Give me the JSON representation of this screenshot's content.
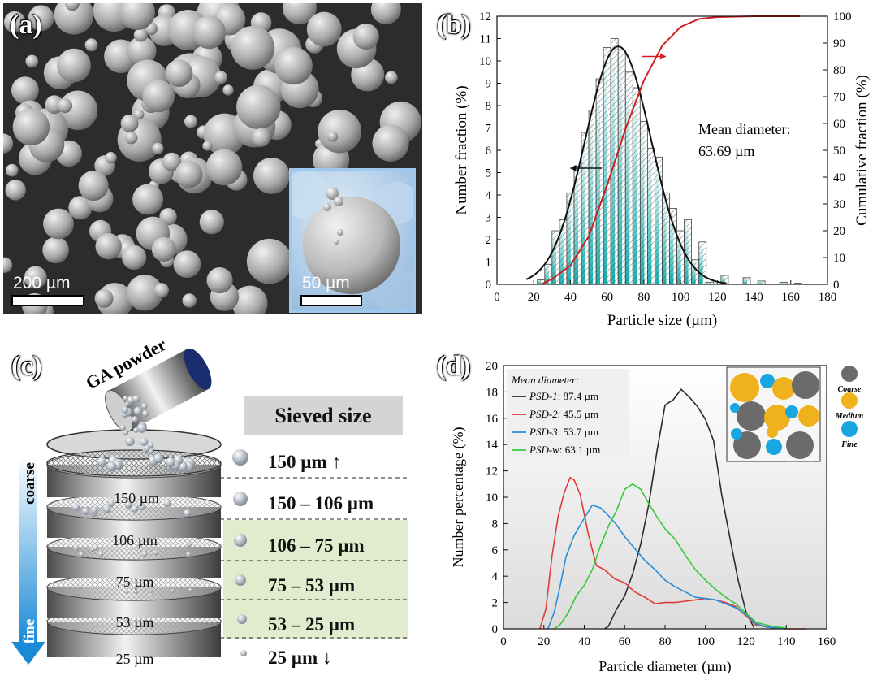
{
  "panels": {
    "a": {
      "letter": "(a)",
      "scale_main": "200 µm",
      "scale_inset": "50 µm"
    },
    "b": {
      "letter": "(b)"
    },
    "c": {
      "letter": "(c)"
    },
    "d": {
      "letter": "(d)"
    }
  },
  "chart_data": [
    {
      "type": "bar",
      "panel": "b",
      "xlabel": "Particle size (µm)",
      "ylabel": "Number fraction (%)",
      "y2label": "Cumulative fraction (%)",
      "xlim": [
        0,
        180
      ],
      "ylim": [
        0,
        12
      ],
      "y2lim": [
        0,
        100
      ],
      "xticks": [
        0,
        20,
        40,
        60,
        80,
        100,
        120,
        140,
        160,
        180
      ],
      "yticks": [
        0,
        1,
        2,
        3,
        4,
        5,
        6,
        7,
        8,
        9,
        10,
        11,
        12
      ],
      "y2ticks": [
        0,
        10,
        20,
        30,
        40,
        50,
        60,
        70,
        80,
        90,
        100
      ],
      "annotation": [
        "Mean diameter:",
        "63.69 µm"
      ],
      "bins": {
        "x": [
          24,
          28,
          32,
          36,
          40,
          44,
          48,
          52,
          56,
          60,
          64,
          68,
          72,
          76,
          80,
          84,
          88,
          92,
          96,
          100,
          104,
          108,
          112,
          116,
          124,
          136,
          144,
          156,
          164
        ],
        "values": [
          0.2,
          0.9,
          2.4,
          2.9,
          4.1,
          5.3,
          6.8,
          7.8,
          9.2,
          10.6,
          11.0,
          10.5,
          9.5,
          8.8,
          7.3,
          6.1,
          5.7,
          4.1,
          3.4,
          2.4,
          2.9,
          1.1,
          1.9,
          0.1,
          0.4,
          0.3,
          0.15,
          0.1,
          0.05
        ]
      },
      "fit_curve": {
        "mean": 66,
        "sd": 18,
        "peak": 10.65
      },
      "cumulative": {
        "x": [
          24,
          30,
          40,
          50,
          60,
          70,
          80,
          90,
          100,
          110,
          120,
          140,
          165
        ],
        "y": [
          0,
          2,
          7,
          18,
          37,
          58,
          76,
          89,
          96,
          99,
          99.7,
          100,
          100
        ]
      }
    },
    {
      "type": "line",
      "panel": "d",
      "xlabel": "Particle diameter (µm)",
      "ylabel": "Number percentage (%)",
      "xlim": [
        0,
        160
      ],
      "ylim": [
        0,
        20
      ],
      "xticks": [
        0,
        20,
        40,
        60,
        80,
        100,
        120,
        140,
        160
      ],
      "yticks": [
        0,
        2,
        4,
        6,
        8,
        10,
        12,
        14,
        16,
        18,
        20
      ],
      "legend_title": "Mean diameter:",
      "series": [
        {
          "name": "PSD-1",
          "label_value": ": 87.4 µm",
          "color": "#2b2b2b",
          "x": [
            50,
            52,
            56,
            60,
            64,
            68,
            72,
            76,
            80,
            84,
            88,
            92,
            96,
            100,
            104,
            108,
            112,
            116,
            120,
            124
          ],
          "y": [
            0,
            0.2,
            1.5,
            2.5,
            4.2,
            6.5,
            9.5,
            13.5,
            17.0,
            17.4,
            18.2,
            17.6,
            16.9,
            15.9,
            14.3,
            10.2,
            7.0,
            3.8,
            1.3,
            0.1
          ]
        },
        {
          "name": "PSD-2",
          "label_value": ": 45.5 µm",
          "color": "#e23a3a",
          "x": [
            18,
            21,
            24,
            27,
            30,
            33,
            35,
            38,
            42,
            46,
            50,
            55,
            60,
            65,
            70,
            75,
            80,
            85,
            90,
            95,
            100,
            105,
            110,
            115,
            120,
            125,
            130,
            135,
            140,
            150
          ],
          "y": [
            0,
            1.5,
            5.5,
            8.5,
            10.3,
            11.5,
            11.3,
            10.2,
            7.2,
            4.8,
            4.5,
            3.8,
            3.5,
            2.8,
            2.4,
            1.9,
            2.0,
            2.0,
            2.1,
            2.2,
            2.3,
            2.2,
            2.0,
            1.7,
            1.0,
            0.3,
            0.15,
            0.05,
            0,
            0
          ]
        },
        {
          "name": "PSD-3",
          "label_value": ": 53.7 µm",
          "color": "#2a8fd6",
          "x": [
            22,
            25,
            28,
            31,
            35,
            40,
            44,
            48,
            52,
            56,
            60,
            65,
            70,
            75,
            80,
            85,
            90,
            95,
            100,
            105,
            110,
            115,
            120,
            125,
            130,
            135,
            140
          ],
          "y": [
            0,
            1.2,
            3.2,
            5.5,
            7.1,
            8.4,
            9.4,
            9.2,
            8.6,
            7.9,
            7.0,
            6.1,
            5.2,
            4.5,
            3.7,
            3.2,
            2.8,
            2.4,
            2.3,
            2.2,
            1.9,
            1.6,
            1.1,
            0.4,
            0.15,
            0.05,
            0
          ]
        },
        {
          "name": "PSD-w",
          "label_value": ": 63.1 µm",
          "color": "#37c93a",
          "x": [
            25,
            28,
            32,
            36,
            40,
            44,
            48,
            52,
            56,
            60,
            64,
            68,
            72,
            76,
            80,
            85,
            90,
            95,
            100,
            105,
            110,
            115,
            120,
            125,
            130,
            135,
            140
          ],
          "y": [
            0,
            0.3,
            1.2,
            2.5,
            3.3,
            4.5,
            6.3,
            7.8,
            9.0,
            10.6,
            11.0,
            10.6,
            9.5,
            8.5,
            7.6,
            6.8,
            5.6,
            4.5,
            3.7,
            3.0,
            2.4,
            1.9,
            1.2,
            0.5,
            0.3,
            0.15,
            0.05
          ]
        }
      ],
      "inset_legend": [
        "Coarse",
        "Medium",
        "Fine"
      ],
      "inset_colors": {
        "coarse": "#6b6b6b",
        "medium": "#f0b21c",
        "fine": "#1aa6e0"
      }
    }
  ],
  "sieve": {
    "powder_label": "GA powder",
    "sieved_size_title": "Sieved size",
    "mesh_labels": [
      "150 µm",
      "106 µm",
      "75 µm",
      "53 µm",
      "25 µm"
    ],
    "size_ranges": [
      "150 µm ↑",
      "150 – 106 µm",
      "106 – 75 µm",
      "75 – 53 µm",
      "53 – 25 µm",
      "25 µm ↓"
    ],
    "arrow_top": "coarse",
    "arrow_bottom": "fine"
  }
}
